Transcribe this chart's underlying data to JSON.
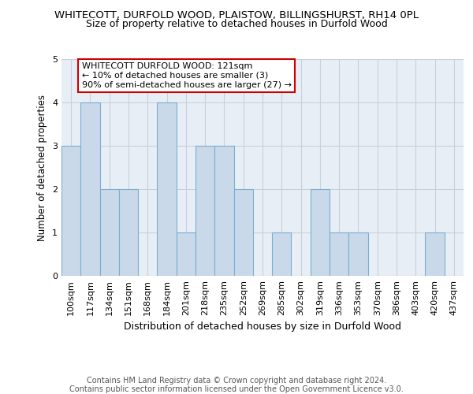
{
  "title_line1": "WHITECOTT, DURFOLD WOOD, PLAISTOW, BILLINGSHURST, RH14 0PL",
  "title_line2": "Size of property relative to detached houses in Durfold Wood",
  "xlabel": "Distribution of detached houses by size in Durfold Wood",
  "ylabel": "Number of detached properties",
  "footnote_line1": "Contains HM Land Registry data © Crown copyright and database right 2024.",
  "footnote_line2": "Contains public sector information licensed under the Open Government Licence v3.0.",
  "bins": [
    "100sqm",
    "117sqm",
    "134sqm",
    "151sqm",
    "168sqm",
    "184sqm",
    "201sqm",
    "218sqm",
    "235sqm",
    "252sqm",
    "269sqm",
    "285sqm",
    "302sqm",
    "319sqm",
    "336sqm",
    "353sqm",
    "370sqm",
    "386sqm",
    "403sqm",
    "420sqm",
    "437sqm"
  ],
  "values": [
    3,
    4,
    2,
    2,
    0,
    4,
    1,
    3,
    3,
    2,
    0,
    1,
    0,
    2,
    1,
    1,
    0,
    0,
    0,
    1,
    0
  ],
  "bar_color": "#c9d9ea",
  "bar_edge_color": "#7aaed0",
  "annotation_text": "WHITECOTT DURFOLD WOOD: 121sqm\n← 10% of detached houses are smaller (3)\n90% of semi-detached houses are larger (27) →",
  "annotation_box_color": "#ffffff",
  "annotation_box_edge_color": "#cc0000",
  "highlight_bar_index": 1,
  "ylim": [
    0,
    5
  ],
  "yticks": [
    0,
    1,
    2,
    3,
    4,
    5
  ],
  "grid_color": "#c8d0da",
  "background_color": "#e8eef5",
  "title1_fontsize": 9.5,
  "title2_fontsize": 9,
  "xlabel_fontsize": 9,
  "ylabel_fontsize": 8.5,
  "tick_fontsize": 8,
  "annotation_fontsize": 8,
  "footnote_fontsize": 7
}
